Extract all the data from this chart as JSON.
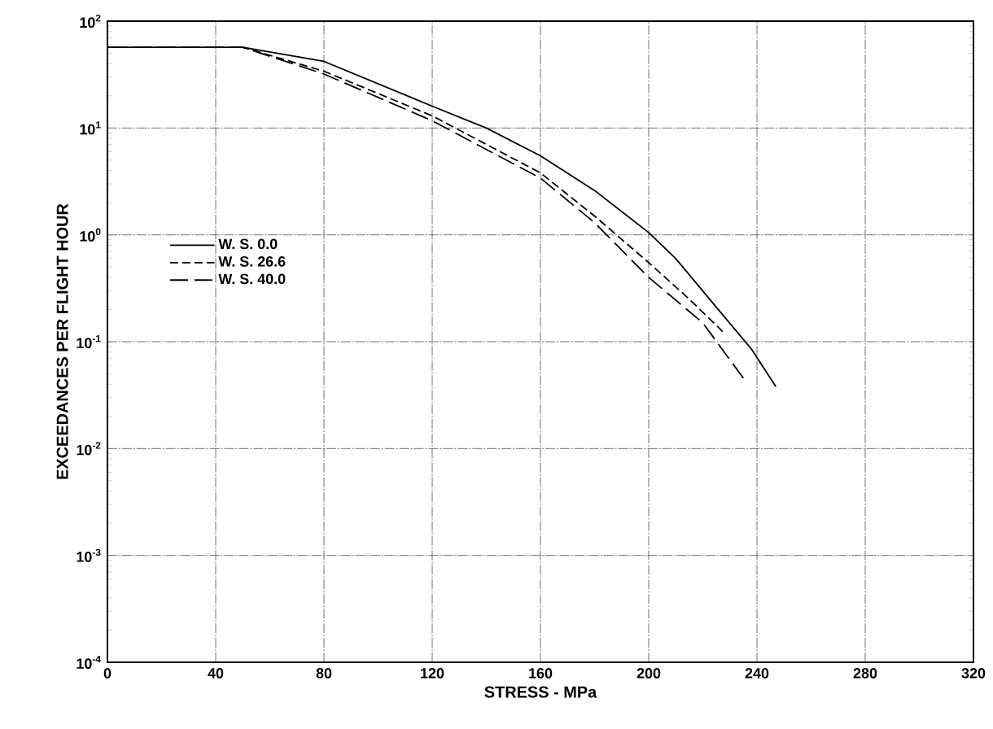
{
  "chart_data": {
    "type": "line",
    "xlabel": "STRESS - MPa",
    "ylabel": "EXCEEDANCES PER FLIGHT HOUR",
    "log": "y",
    "grid": true,
    "legend": "left",
    "marker": "none",
    "xlim": [
      0,
      320
    ],
    "xticks": [
      0,
      40,
      80,
      120,
      160,
      200,
      240,
      280,
      320
    ],
    "ylim": [
      0.0001,
      100
    ],
    "yticks": [
      {
        "value": 0.0001,
        "label": "10$^{-4}$"
      },
      {
        "value": 0.001,
        "label": "10$^{-3}$"
      },
      {
        "value": 0.01,
        "label": "10$^{-2}$"
      },
      {
        "value": 0.1,
        "label": "10$^{-1}$"
      },
      {
        "value": 1,
        "label": "10$^{0}$"
      },
      {
        "value": 10,
        "label": "10$^{1}$"
      },
      {
        "value": 100,
        "label": "10$^{2}$"
      }
    ],
    "series": [
      {
        "name": "W. S. 0.0",
        "color": "#000000",
        "line_style": "solid",
        "x": [
          0,
          50,
          80,
          120,
          140,
          160,
          180,
          200,
          210,
          225,
          238,
          247
        ],
        "values": [
          57,
          57,
          42,
          16,
          10,
          5.5,
          2.6,
          1.05,
          0.6,
          0.21,
          0.085,
          0.038
        ]
      },
      {
        "name": "W. S. 26.6",
        "color": "#000000",
        "line_style": "dashed",
        "x": [
          0,
          50,
          80,
          120,
          160,
          180,
          200,
          215,
          228
        ],
        "values": [
          57,
          57,
          34,
          13,
          3.8,
          1.5,
          0.55,
          0.25,
          0.12
        ]
      },
      {
        "name": "W. S. 40.0",
        "color": "#000000",
        "line_style": "longdashed",
        "x": [
          0,
          50,
          80,
          120,
          160,
          180,
          200,
          220,
          236
        ],
        "values": [
          57,
          57,
          32,
          11.7,
          3.4,
          1.3,
          0.4,
          0.15,
          0.042
        ]
      }
    ]
  }
}
